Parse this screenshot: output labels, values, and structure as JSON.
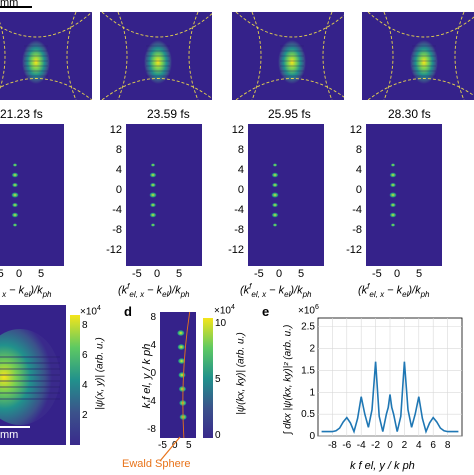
{
  "scale_bar": {
    "label": "mm"
  },
  "top_row": {
    "panel_count": 4
  },
  "time_labels": [
    "21.23 fs",
    "23.59 fs",
    "25.95 fs",
    "28.30 fs"
  ],
  "middle_row": {
    "yticks": [
      "12",
      "8",
      "4",
      "0",
      "-4",
      "-8",
      "-12"
    ],
    "xticks": [
      "-5",
      "0",
      "5"
    ],
    "xlabel_prefix": "(k",
    "xlabel_sup": "f",
    "xlabel_sub": "el, x",
    "xlabel_mid": " − k",
    "xlabel_sub2": "el",
    "xlabel_end": ")/k",
    "xlabel_sub3": "ph"
  },
  "panel_c": {
    "scale_label": "mm",
    "colorbar_exp": "×10",
    "colorbar_exp_sup": "4",
    "colorbar_ticks": [
      "8",
      "6",
      "4",
      "2"
    ],
    "colorbar_label": "|ψ(x, y)| (arb. u.)"
  },
  "panel_d": {
    "letter": "d",
    "yticks": [
      "8",
      "4",
      "0",
      "-4",
      "-8"
    ],
    "xticks": [
      "-5",
      "0",
      "5"
    ],
    "colorbar_exp": "×10",
    "colorbar_exp_sup": "4",
    "colorbar_ticks": [
      "10",
      "5",
      "0"
    ],
    "colorbar_label": "|ψ(kx, ky)| (arb. u.)",
    "ylabel": "k f el, y / k ph",
    "ewald": "Ewald Sphere"
  },
  "panel_e": {
    "letter": "e",
    "y_exp": "×10",
    "y_exp_sup": "6",
    "ylabel": "∫ dkx |ψ(kx, ky)|² (arb. u.)",
    "xlabel": "k f el, y / k ph",
    "chart_data": {
      "type": "line",
      "x": [
        -9.5,
        -9,
        -8.5,
        -8,
        -7.5,
        -7,
        -6.5,
        -6,
        -5.5,
        -5,
        -4.5,
        -4,
        -3.5,
        -3,
        -2.5,
        -2,
        -1.5,
        -1,
        -0.5,
        -0.25,
        0,
        0.25,
        0.5,
        1,
        1.5,
        2,
        2.5,
        3,
        3.5,
        4,
        4.5,
        5,
        5.5,
        6,
        6.5,
        7,
        7.5,
        8,
        8.5,
        9,
        9.5
      ],
      "y": [
        0.1,
        0.1,
        0.1,
        0.1,
        0.12,
        0.18,
        0.32,
        0.42,
        0.3,
        0.1,
        0.4,
        0.9,
        0.5,
        0.2,
        0.6,
        1.7,
        0.45,
        0.1,
        0.5,
        0.65,
        0.95,
        0.65,
        0.5,
        0.1,
        0.45,
        1.7,
        0.6,
        0.2,
        0.5,
        0.9,
        0.4,
        0.1,
        0.3,
        0.42,
        0.32,
        0.18,
        0.12,
        0.1,
        0.1,
        0.1,
        0.1
      ],
      "xticks": [
        -8,
        -6,
        -4,
        -2,
        0,
        2,
        4,
        6,
        8
      ],
      "yticks": [
        0,
        0.5,
        1,
        1.5,
        2,
        2.5
      ],
      "xlim": [
        -10,
        10
      ],
      "ylim": [
        0,
        2.7
      ],
      "grid": true,
      "color": "#1f77b4"
    }
  }
}
